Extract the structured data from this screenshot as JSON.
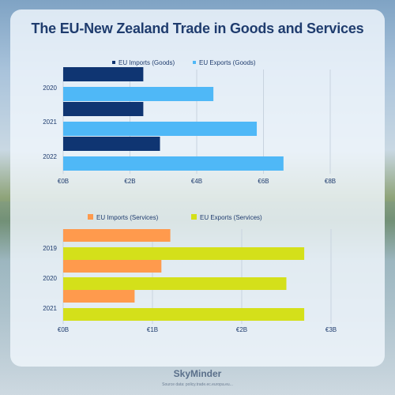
{
  "title": "The EU-New Zealand Trade in Goods and Services",
  "brand": "SkyMinder",
  "source": "Source data: policy.trade.ec.europa.eu...",
  "colors": {
    "imports_goods": "#0f3572",
    "exports_goods": "#4fb8f7",
    "imports_services": "#ff9a4d",
    "exports_services": "#d4e01a"
  },
  "chart_data": [
    {
      "type": "bar",
      "orientation": "horizontal",
      "categories": [
        "2020",
        "2021",
        "2022"
      ],
      "series": [
        {
          "name": "EU Imports (Goods)",
          "values": [
            2.4,
            2.4,
            2.9
          ]
        },
        {
          "name": "EU Exports (Goods)",
          "values": [
            4.5,
            5.8,
            6.6
          ]
        }
      ],
      "xlim": [
        0,
        8
      ],
      "xticks": [
        "€0B",
        "€2B",
        "€4B",
        "€6B",
        "€8B"
      ],
      "legend": "top-center",
      "grid": true
    },
    {
      "type": "bar",
      "orientation": "horizontal",
      "categories": [
        "2019",
        "2020",
        "2021"
      ],
      "series": [
        {
          "name": "EU Imports (Services)",
          "values": [
            1.2,
            1.1,
            0.8
          ]
        },
        {
          "name": "EU Exports (Services)",
          "values": [
            2.7,
            2.5,
            2.7
          ]
        }
      ],
      "xlim": [
        0,
        3
      ],
      "xticks": [
        "€0B",
        "€1B",
        "€2B",
        "€3B"
      ],
      "legend": "top-center",
      "grid": true
    }
  ]
}
